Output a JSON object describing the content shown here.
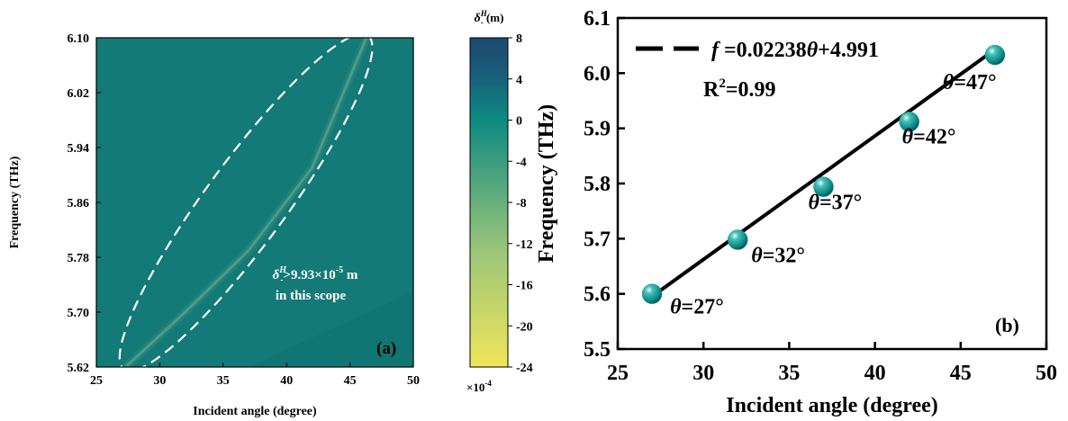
{
  "chart_data": [
    {
      "type": "heatmap",
      "panel_label": "(a)",
      "xlabel": "Incident angle (degree)",
      "ylabel": "Frequency (THz)",
      "xlim": [
        25,
        50
      ],
      "ylim": [
        5.62,
        6.1
      ],
      "x_ticks": [
        25,
        30,
        35,
        40,
        45,
        50
      ],
      "y_ticks": [
        5.62,
        5.7,
        5.78,
        5.86,
        5.94,
        6.02,
        6.1
      ],
      "annotation_line1": "δH->9.93×10-5 m",
      "annotation_line1_parts": {
        "sym": "δ",
        "sup": "H",
        "sub": "-",
        "mid": ">9.93×10",
        "exp": "-5",
        "unit": " m"
      },
      "annotation_line2": "in this scope",
      "colorbar": {
        "title_sym": "δ",
        "title_sup": "H",
        "title_sub": "-",
        "title_unit": " (m)",
        "range": [
          -24,
          8
        ],
        "ticks": [
          8,
          4,
          0,
          -4,
          -8,
          -12,
          -16,
          -20,
          -24
        ],
        "multiplier_base": "×10",
        "multiplier_exp": "-4",
        "colors": [
          "#f0e65a",
          "#9cc67a",
          "#0e8a82",
          "#1a5a7a",
          "#1c4a6e"
        ]
      },
      "background_color": "#137a78",
      "ridge_color": "#4f9a88",
      "ellipse_color": "#ffffff",
      "ridge": [
        [
          27.3,
          5.62
        ],
        [
          32,
          5.7
        ],
        [
          37,
          5.79
        ],
        [
          42,
          5.91
        ],
        [
          46.3,
          6.1
        ]
      ]
    },
    {
      "type": "scatter",
      "panel_label": "(b)",
      "xlabel": "Incident angle (degree)",
      "ylabel": "Frequency (THz)",
      "xlim": [
        25,
        50
      ],
      "ylim": [
        5.5,
        6.1
      ],
      "x_ticks": [
        25,
        30,
        35,
        40,
        45,
        50
      ],
      "y_ticks": [
        5.5,
        5.6,
        5.7,
        5.8,
        5.9,
        6.0,
        6.1
      ],
      "points": [
        {
          "x": 27,
          "y": 5.6,
          "label_sym": "θ",
          "label_val": "=27°"
        },
        {
          "x": 32,
          "y": 5.698,
          "label_sym": "θ",
          "label_val": "=32°"
        },
        {
          "x": 37,
          "y": 5.794,
          "label_sym": "θ",
          "label_val": "=37°"
        },
        {
          "x": 42,
          "y": 5.912,
          "label_sym": "θ",
          "label_val": "=42°"
        },
        {
          "x": 47,
          "y": 6.033,
          "label_sym": "θ",
          "label_val": "=47°"
        }
      ],
      "fit": {
        "slope": 0.02238,
        "intercept": 4.991,
        "x_range": [
          27,
          47
        ]
      },
      "legend": {
        "f": "f",
        "eq_a": " =0.02238",
        "theta": "θ",
        "eq_b": "+4.991"
      },
      "r2": {
        "base": "R",
        "exp": "2",
        "rest": "=0.99"
      },
      "marker_color": "#129a94",
      "line_color": "#000000"
    }
  ]
}
